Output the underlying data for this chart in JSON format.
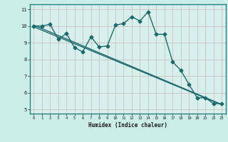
{
  "xlabel": "Humidex (Indice chaleur)",
  "bg_color": "#cceee8",
  "plot_bg_color": "#d8f0ec",
  "grid_color": "#c8b8b8",
  "line_color": "#1a6b6b",
  "xlim": [
    -0.5,
    23.5
  ],
  "ylim": [
    4.75,
    11.3
  ],
  "xticks": [
    0,
    1,
    2,
    3,
    4,
    5,
    6,
    7,
    8,
    9,
    10,
    11,
    12,
    13,
    14,
    15,
    16,
    17,
    18,
    19,
    20,
    21,
    22,
    23
  ],
  "yticks": [
    5,
    6,
    7,
    8,
    9,
    10,
    11
  ],
  "line1_x": [
    0,
    1,
    2,
    3,
    4,
    5,
    6,
    7,
    8,
    9,
    10,
    11,
    12,
    13,
    14,
    15,
    16,
    17,
    18,
    19,
    20,
    21,
    22,
    23
  ],
  "line1_y": [
    10.0,
    10.0,
    10.1,
    9.2,
    9.55,
    8.7,
    8.45,
    9.35,
    8.75,
    8.8,
    10.05,
    10.15,
    10.55,
    10.3,
    10.85,
    9.5,
    9.5,
    7.85,
    7.35,
    6.5,
    5.7,
    5.7,
    5.35,
    5.35
  ],
  "line2_x": [
    0,
    23
  ],
  "line2_y": [
    10.05,
    5.3
  ],
  "line3_x": [
    0,
    23
  ],
  "line3_y": [
    9.95,
    5.28
  ],
  "marker": "D",
  "marker_size": 2.5,
  "linewidth": 1.0
}
